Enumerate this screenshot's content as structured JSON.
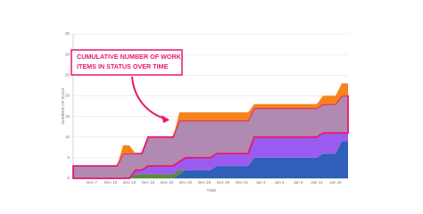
{
  "chart_data": {
    "type": "stacked-area",
    "xlabel": "TIME",
    "ylabel": "NUMBER OF BUGS",
    "annotation": [
      "CUMULATIVE NUMBER OF WORK",
      "ITEMS IN STATUS OVER TIME"
    ],
    "categories": [
      null,
      null,
      null,
      "Dec 7",
      null,
      null,
      "Dec 10",
      null,
      null,
      "Dec 13",
      null,
      null,
      "Dec 16",
      null,
      null,
      "Dec 19",
      null,
      null,
      "Dec 22",
      null,
      null,
      "Dec 25",
      null,
      null,
      "Dec 28",
      null,
      null,
      "Dec 31",
      null,
      null,
      "Jan 3",
      null,
      null,
      "Jan 6",
      null,
      null,
      "Jan 9",
      null,
      null,
      "Jan 12",
      null,
      null,
      "Jan 15",
      null,
      null
    ],
    "series": [
      {
        "color": "#2f5fb8",
        "values": [
          0,
          0,
          0,
          0,
          0,
          0,
          0,
          0,
          0,
          0,
          0,
          0,
          0,
          0,
          0,
          0,
          0,
          1,
          2,
          2,
          2,
          2,
          2,
          3,
          3,
          3,
          3,
          3,
          3,
          5,
          5,
          5,
          5,
          5,
          5,
          5,
          5,
          5,
          5,
          5,
          6,
          6,
          6,
          9,
          9
        ]
      },
      {
        "color": "#5a8a3a",
        "values": [
          0,
          0,
          0,
          0,
          0,
          0,
          0,
          0,
          0,
          0,
          1,
          1,
          1,
          1,
          1,
          1,
          1,
          1,
          0,
          0,
          0,
          0,
          0,
          0,
          0,
          0,
          0,
          0,
          0,
          0,
          0,
          0,
          0,
          0,
          0,
          0,
          0,
          0,
          0,
          0,
          0,
          0,
          0,
          0,
          0
        ]
      },
      {
        "color": "#9a5cf0",
        "values": [
          0,
          0,
          0,
          0,
          0,
          0,
          0,
          0,
          0,
          0,
          1,
          1,
          2,
          2,
          2,
          2,
          2,
          2,
          3,
          3,
          3,
          3,
          3,
          3,
          3,
          3,
          3,
          3,
          3,
          5,
          5,
          5,
          5,
          5,
          5,
          5,
          5,
          5,
          5,
          5,
          5,
          5,
          5,
          2,
          2
        ]
      },
      {
        "color": "#b08ab0",
        "values": [
          3,
          3,
          3,
          3,
          3,
          3,
          3,
          3,
          6,
          6,
          4,
          4,
          7,
          7,
          7,
          7,
          7,
          10,
          9,
          9,
          9,
          9,
          9,
          8,
          8,
          8,
          8,
          8,
          8,
          7,
          7,
          7,
          7,
          7,
          7,
          7,
          7,
          7,
          7,
          7,
          7,
          7,
          7,
          9,
          9
        ]
      },
      {
        "color": "#f5841f",
        "values": [
          0,
          0,
          0,
          0,
          0,
          0,
          0,
          0,
          2,
          2,
          0,
          0,
          0,
          0,
          0,
          0,
          0,
          2,
          2,
          2,
          2,
          2,
          2,
          2,
          2,
          2,
          2,
          2,
          2,
          1,
          1,
          1,
          1,
          1,
          1,
          1,
          1,
          1,
          1,
          1,
          2,
          2,
          2,
          3,
          3
        ]
      }
    ],
    "ylim": [
      0,
      35
    ],
    "yticks": [
      0,
      5,
      10,
      15,
      20,
      25,
      30,
      35
    ],
    "grid": true
  }
}
